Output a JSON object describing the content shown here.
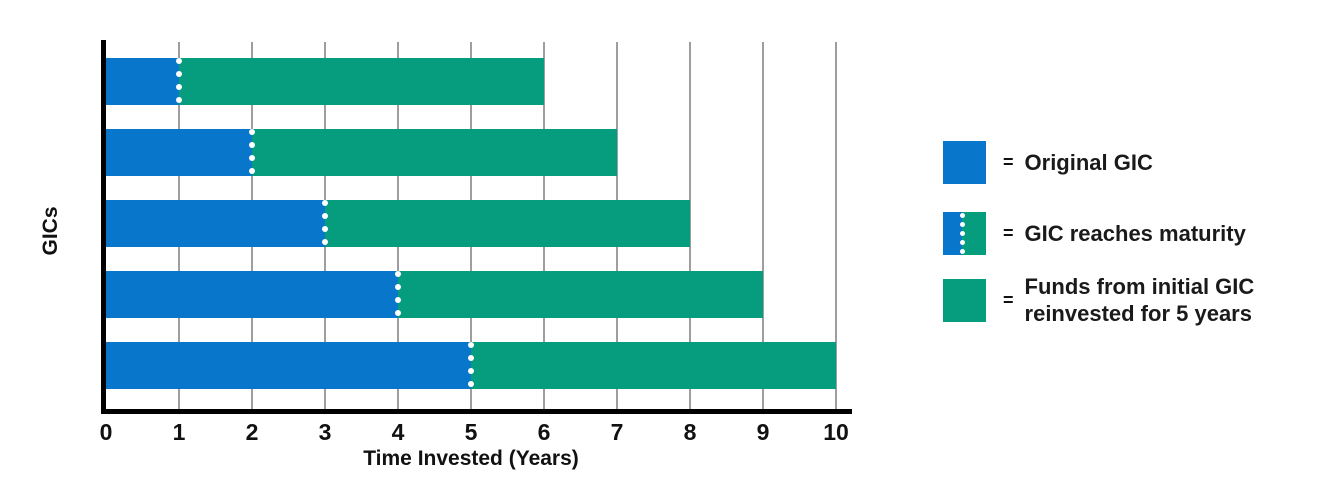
{
  "chart_data": {
    "type": "bar",
    "orientation": "horizontal",
    "title": "",
    "xlabel": "Time Invested (Years)",
    "ylabel": "GICs",
    "xlim": [
      0,
      10
    ],
    "xticks": [
      0,
      1,
      2,
      3,
      4,
      5,
      6,
      7,
      8,
      9,
      10
    ],
    "grid": true,
    "bar_count": 5,
    "series": [
      {
        "name": "Original GIC",
        "color": "#0877cb",
        "values": [
          1,
          2,
          3,
          4,
          5
        ]
      },
      {
        "name": "Funds from initial GIC reinvested for 5 years",
        "color": "#069c7e",
        "values": [
          5,
          5,
          5,
          5,
          5
        ]
      }
    ],
    "maturity_markers": {
      "years": [
        1,
        2,
        3,
        4,
        5
      ],
      "style": "white-dotted-vertical-line"
    },
    "legend": {
      "position": "right",
      "items": [
        {
          "swatch": "original-gic",
          "equals": "=",
          "label": "Original GIC"
        },
        {
          "swatch": "gic-maturity",
          "equals": "=",
          "label": "GIC reaches maturity"
        },
        {
          "swatch": "reinvested",
          "equals": "=",
          "label": "Funds from initial GIC reinvested for 5 years",
          "label_lines": [
            "Funds from initial GIC",
            "reinvested for 5 years"
          ]
        }
      ]
    },
    "colors": {
      "original_gic": "#0877cb",
      "reinvested": "#069c7e",
      "maturity_dots": "#ffffff",
      "gridline": "#9e9e9e",
      "axis": "#000000",
      "text": "#1a1a1a"
    }
  }
}
